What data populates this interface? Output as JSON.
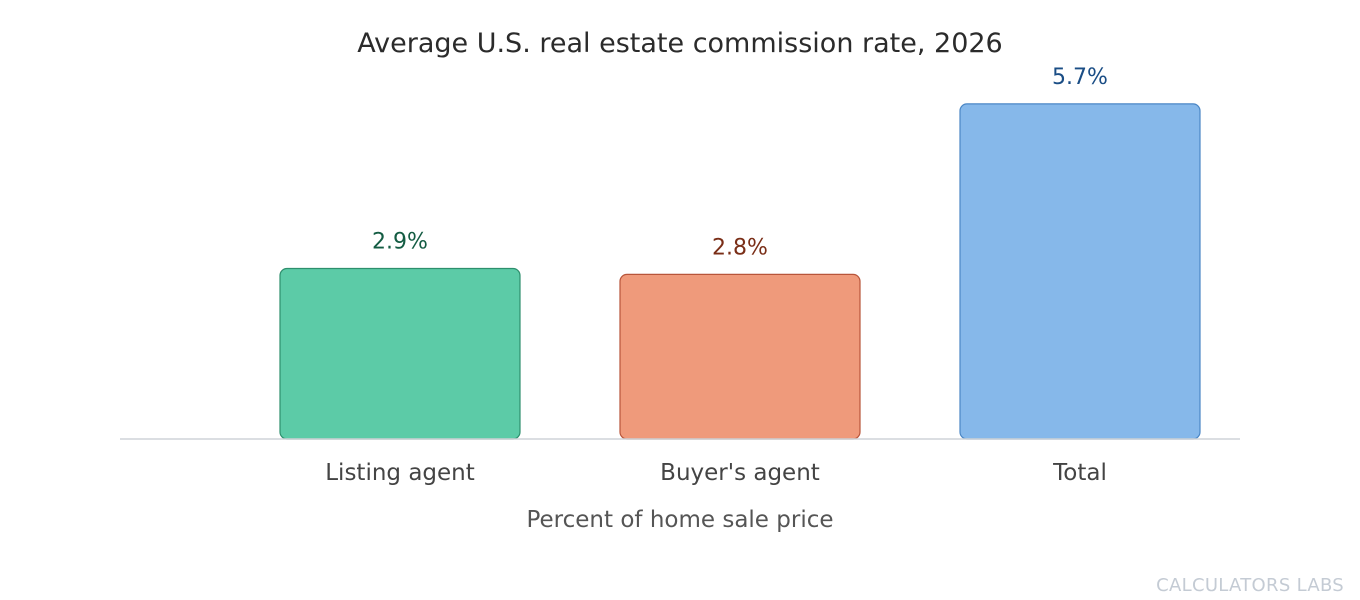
{
  "chart_data": {
    "type": "bar",
    "title": "Average U.S. real estate commission rate, 2026",
    "xlabel": "Percent of home sale price",
    "ylabel": "",
    "categories": [
      "Listing agent",
      "Buyer's agent",
      "Total"
    ],
    "values": [
      2.9,
      2.8,
      5.7
    ],
    "value_labels": [
      "2.9%",
      "2.8%",
      "5.7%"
    ],
    "ylim": [
      0,
      5.8
    ],
    "grid": false,
    "colors": {
      "fills": [
        "#5ccba7",
        "#ef9a7b",
        "#86b8ea"
      ],
      "strokes": [
        "#2e8f6d",
        "#b8553a",
        "#4a86c5"
      ],
      "labels": [
        "#145c43",
        "#7a2e17",
        "#1a4d85"
      ],
      "axis": "#cfd3d8",
      "title": "#2b2b2b",
      "tick": "#444444",
      "xlabel": "#555555"
    }
  },
  "watermark": "CALCULATORS LABS"
}
